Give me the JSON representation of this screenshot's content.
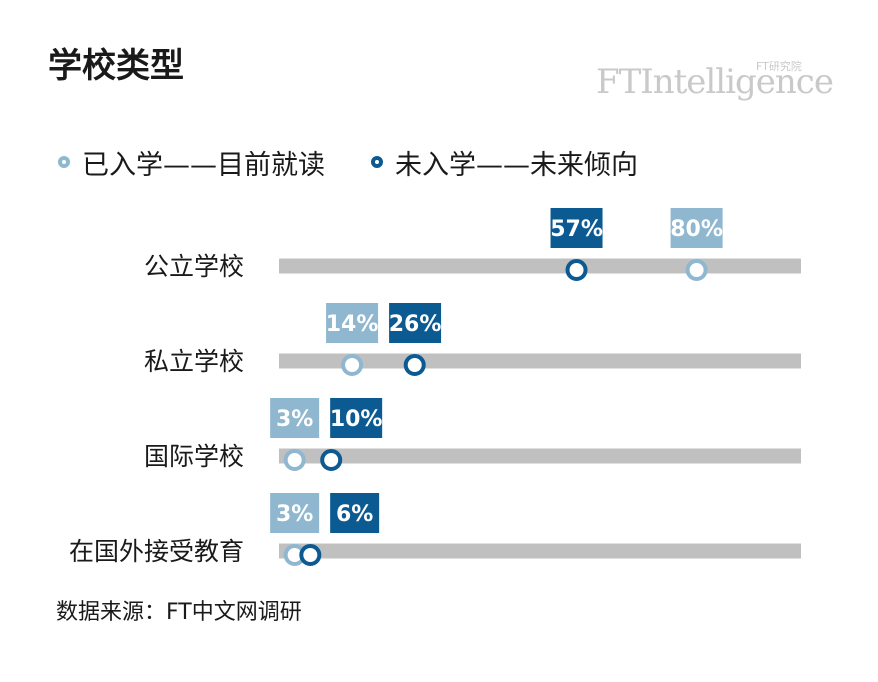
{
  "title": "学校类型",
  "logo": {
    "main": "FTIntelligence",
    "sub": "FT研究院"
  },
  "legend": [
    {
      "label": "已入学——目前就读",
      "color": "#8fb7cf"
    },
    {
      "label": "未入学——未来倾向",
      "color": "#0b5a92"
    }
  ],
  "source": "数据来源：FT中文网调研",
  "colors": {
    "track": "#c0c0c0",
    "enrolled": "#8fb7cf",
    "future": "#0b5a92"
  },
  "chart_data": {
    "type": "dot",
    "categories": [
      "公立学校",
      "私立学校",
      "国际学校",
      "在国外接受教育"
    ],
    "series": [
      {
        "name": "已入学——目前就读",
        "values": [
          80,
          14,
          3,
          3
        ],
        "labels": [
          "80%",
          "14%",
          "3%",
          "3%"
        ]
      },
      {
        "name": "未入学——未来倾向",
        "values": [
          57,
          26,
          10,
          6
        ],
        "labels": [
          "57%",
          "26%",
          "10%",
          "6%"
        ]
      }
    ],
    "xlim": [
      0,
      100
    ],
    "unit": "%"
  }
}
